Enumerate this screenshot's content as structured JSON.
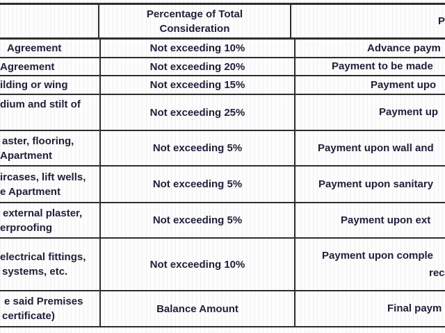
{
  "colors": {
    "text": "#20203a",
    "border": "#2d2d2d",
    "background": "#fdfdfd"
  },
  "table": {
    "header": {
      "stage": "",
      "percentage_lines": [
        "Percentage of Total",
        "Consideration"
      ],
      "payment_fragment": "P"
    },
    "rows": [
      {
        "stage_lines": [
          "Agreement"
        ],
        "percentage": "Not exceeding 10%",
        "payment_lines": [
          "Advance paym"
        ]
      },
      {
        "stage_lines": [
          "Agreement"
        ],
        "percentage": "Not exceeding 20%",
        "payment_lines": [
          "Payment to be made"
        ]
      },
      {
        "stage_lines": [
          "ilding or wing"
        ],
        "percentage": "Not exceeding 15%",
        "payment_lines": [
          "Payment upo"
        ]
      },
      {
        "stage_lines": [
          "dium and stilt of"
        ],
        "percentage": "Not exceeding 25%",
        "payment_lines": [
          "Payment up"
        ]
      },
      {
        "stage_lines": [
          "aster, flooring,",
          "Apartment"
        ],
        "percentage": "Not exceeding 5%",
        "payment_lines": [
          "Payment upon wall and"
        ]
      },
      {
        "stage_lines": [
          "ircases, lift wells,",
          "e Apartment"
        ],
        "percentage": "Not exceeding 5%",
        "payment_lines": [
          "Payment upon sanitary"
        ]
      },
      {
        "stage_lines": [
          "external plaster,",
          "erproofing"
        ],
        "percentage": "Not exceeding 5%",
        "payment_lines": [
          "Payment upon ext"
        ]
      },
      {
        "stage_lines": [
          "electrical fittings,",
          "systems, etc."
        ],
        "percentage": "Not exceeding 10%",
        "payment_lines": [
          "Payment upon comple",
          "rec"
        ]
      },
      {
        "stage_lines": [
          "e said Premises",
          "certificate)"
        ],
        "percentage": "Balance Amount",
        "payment_lines": [
          "Final paym"
        ]
      }
    ]
  }
}
